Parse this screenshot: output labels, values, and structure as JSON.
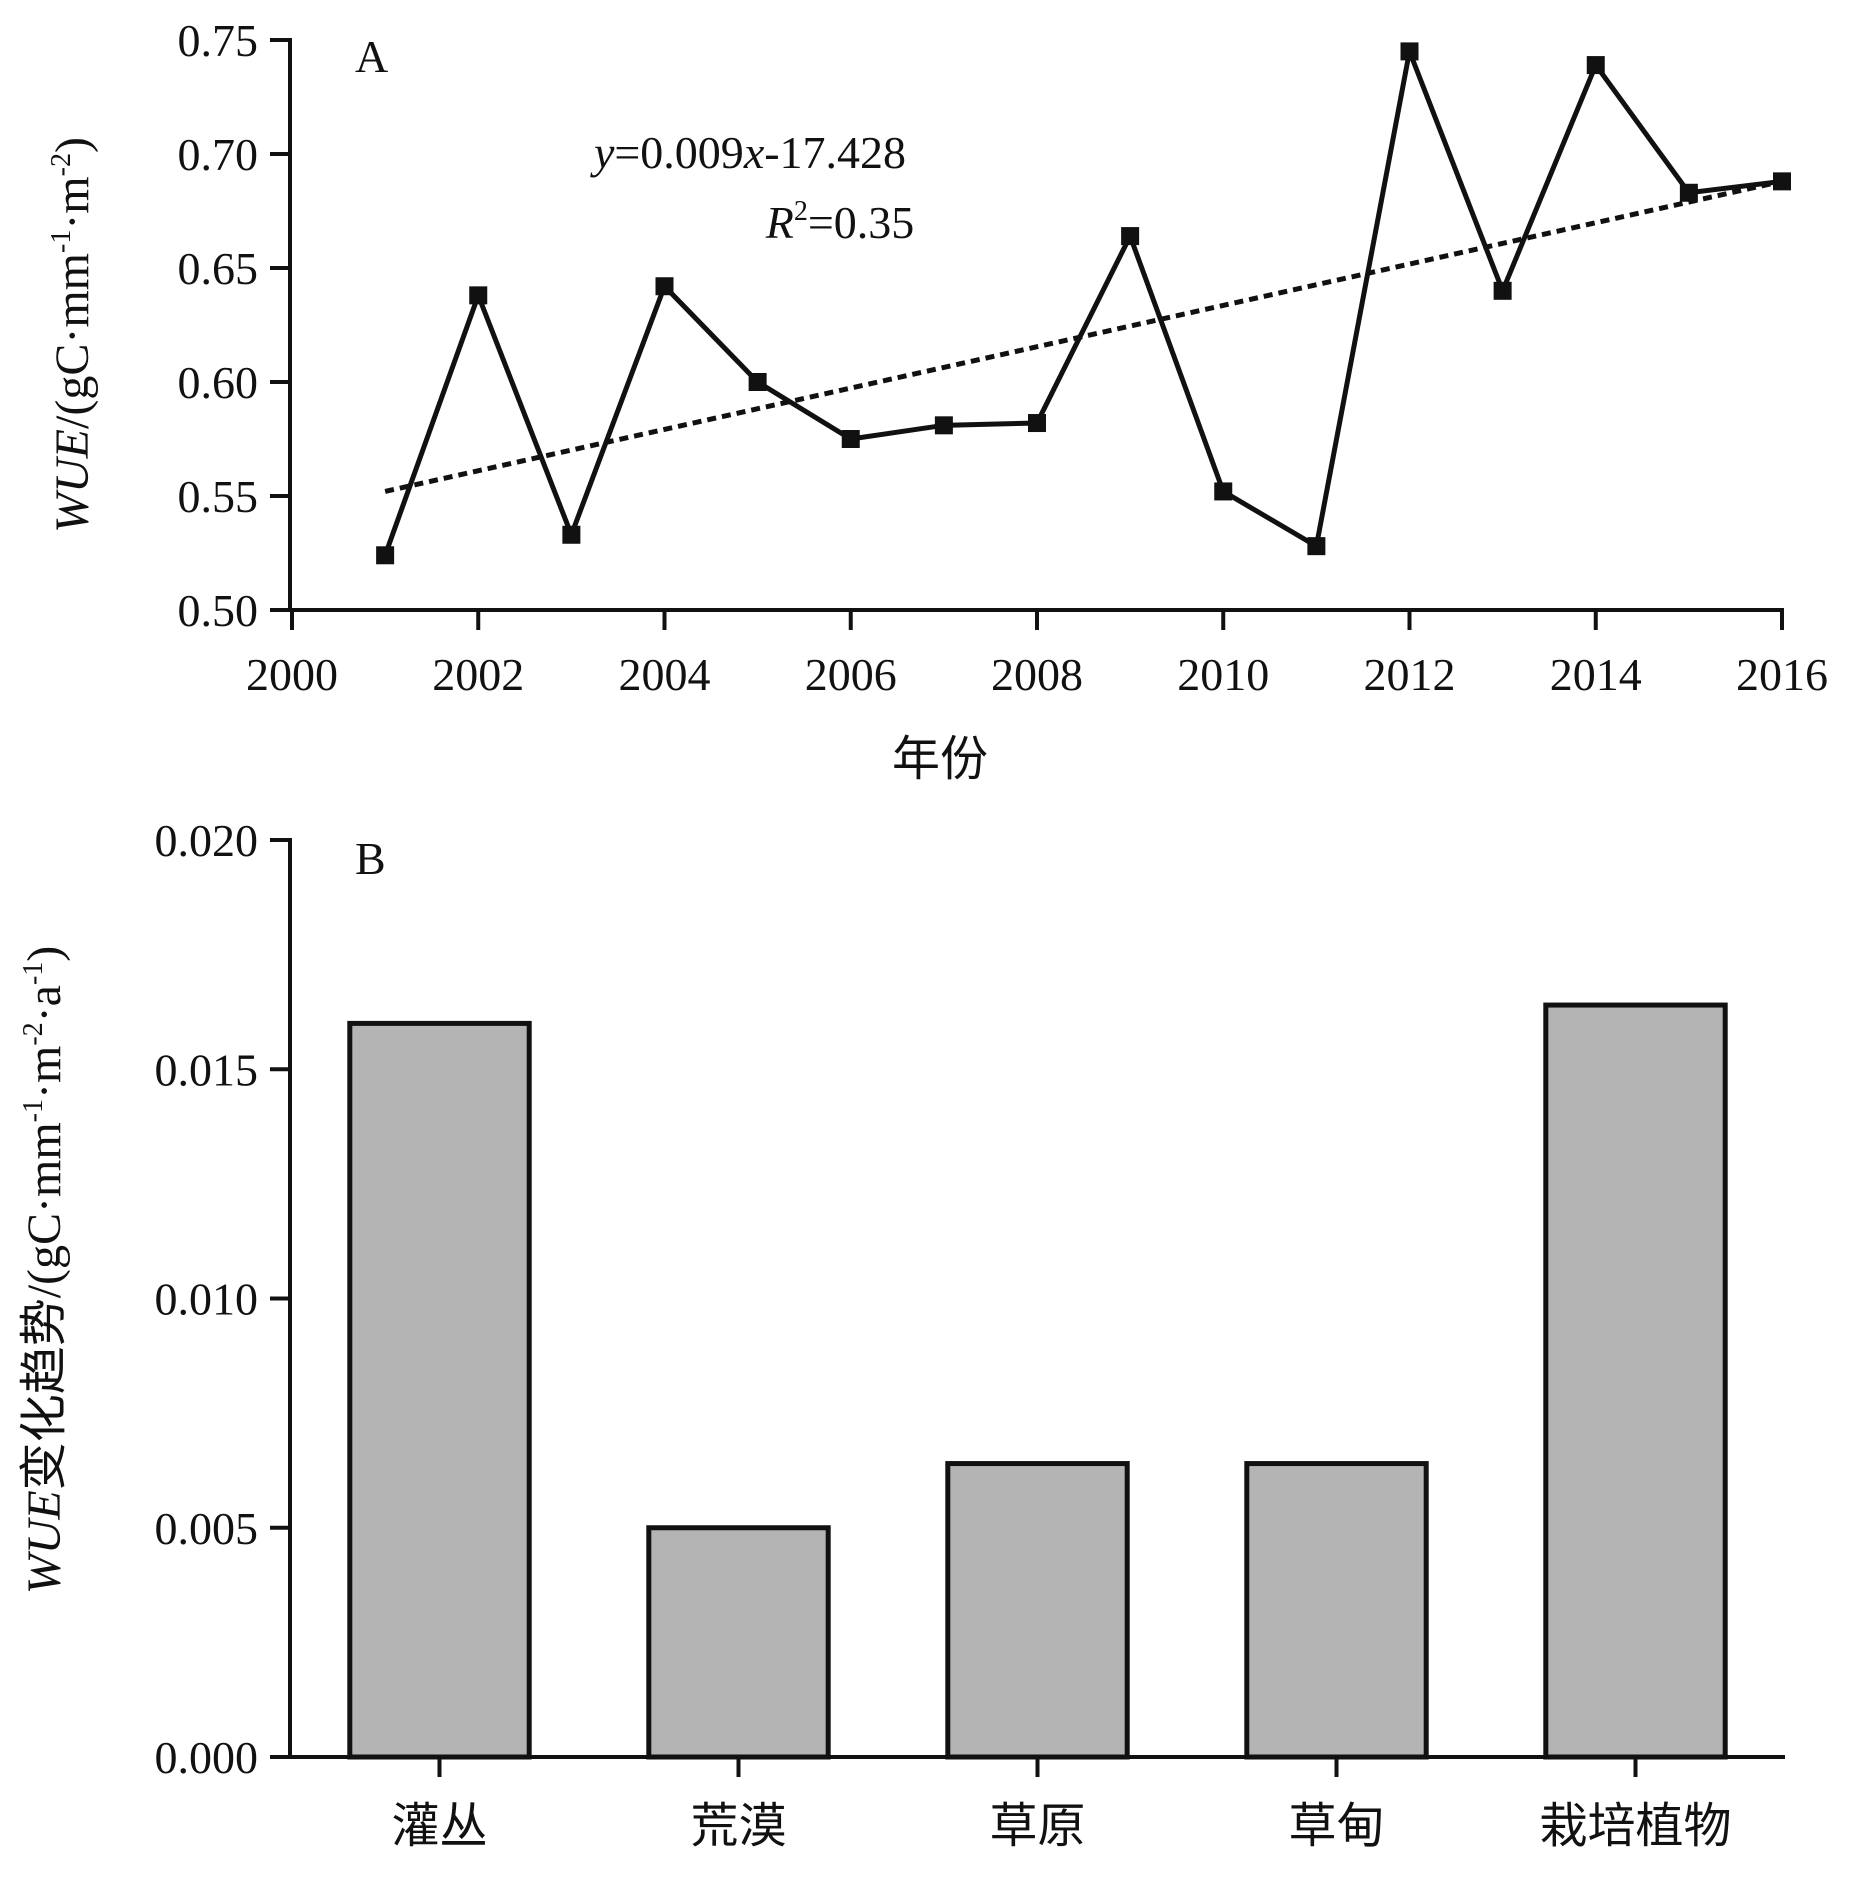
{
  "colors": {
    "ink": "#111111",
    "bar_fill": "#b4b4b4",
    "background": "#ffffff"
  },
  "chart_data": [
    {
      "type": "line",
      "panel_label": "A",
      "xlabel": "年份",
      "ylabel_italic": "WUE",
      "ylabel_rest": "/(gC·mm",
      "ylabel_sup1": "-1",
      "ylabel_mid": "·m",
      "ylabel_sup2": "-2",
      "ylabel_end": ")",
      "xlim": [
        2000,
        2016
      ],
      "ylim": [
        0.5,
        0.75
      ],
      "x_ticks": [
        "2000",
        "2002",
        "2004",
        "2006",
        "2008",
        "2010",
        "2012",
        "2014",
        "2016"
      ],
      "y_ticks": [
        "0.50",
        "0.55",
        "0.60",
        "0.65",
        "0.70",
        "0.75"
      ],
      "x": [
        2001,
        2002,
        2003,
        2004,
        2005,
        2006,
        2007,
        2008,
        2009,
        2010,
        2011,
        2012,
        2013,
        2014,
        2015,
        2016
      ],
      "values": [
        0.524,
        0.638,
        0.533,
        0.642,
        0.6,
        0.575,
        0.581,
        0.582,
        0.664,
        0.552,
        0.528,
        0.745,
        0.64,
        0.739,
        0.683,
        0.688
      ],
      "trendline": {
        "x": [
          2001,
          2016
        ],
        "y": [
          0.552,
          0.688
        ],
        "eq_y": "y",
        "eq_mid": "=0.009",
        "eq_x": "x",
        "eq_end": "-17.428",
        "r_letter": "R",
        "r_sup": "2",
        "r_value": "=0.35"
      },
      "grid": false
    },
    {
      "type": "bar",
      "panel_label": "B",
      "categories": [
        "灌丛",
        "荒漠",
        "草原",
        "草甸",
        "栽培植物"
      ],
      "values": [
        0.016,
        0.005,
        0.0064,
        0.0064,
        0.0164
      ],
      "ylim": [
        0.0,
        0.02
      ],
      "y_ticks": [
        "0.000",
        "0.005",
        "0.010",
        "0.015",
        "0.020"
      ],
      "ylabel_italic": "WUE",
      "ylabel_rest": "变化趋势/(gC·mm",
      "ylabel_sup1": "-1",
      "ylabel_mid": "·m",
      "ylabel_sup2": "-2",
      "ylabel_mid2": "·a",
      "ylabel_sup3": "-1",
      "ylabel_end": ")",
      "xlabel": "",
      "grid": false
    }
  ]
}
